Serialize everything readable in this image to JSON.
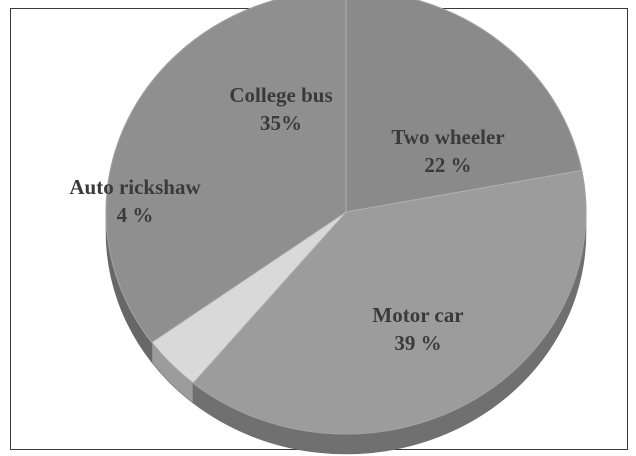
{
  "chart_data": {
    "type": "pie",
    "style": "3d",
    "slices": [
      {
        "label": "Two wheeler",
        "value_label": "22 %",
        "value": 22,
        "color": "#8a8a8a"
      },
      {
        "label": "Motor car",
        "value_label": "39 %",
        "value": 39,
        "color": "#9c9c9c"
      },
      {
        "label": "Auto rickshaw",
        "value_label": "4 %",
        "value": 4,
        "color": "#d9d9d9"
      },
      {
        "label": "College bus",
        "value_label": "35%",
        "value": 35,
        "color": "#8f8f8f"
      }
    ],
    "legend": "none",
    "grid": false
  }
}
